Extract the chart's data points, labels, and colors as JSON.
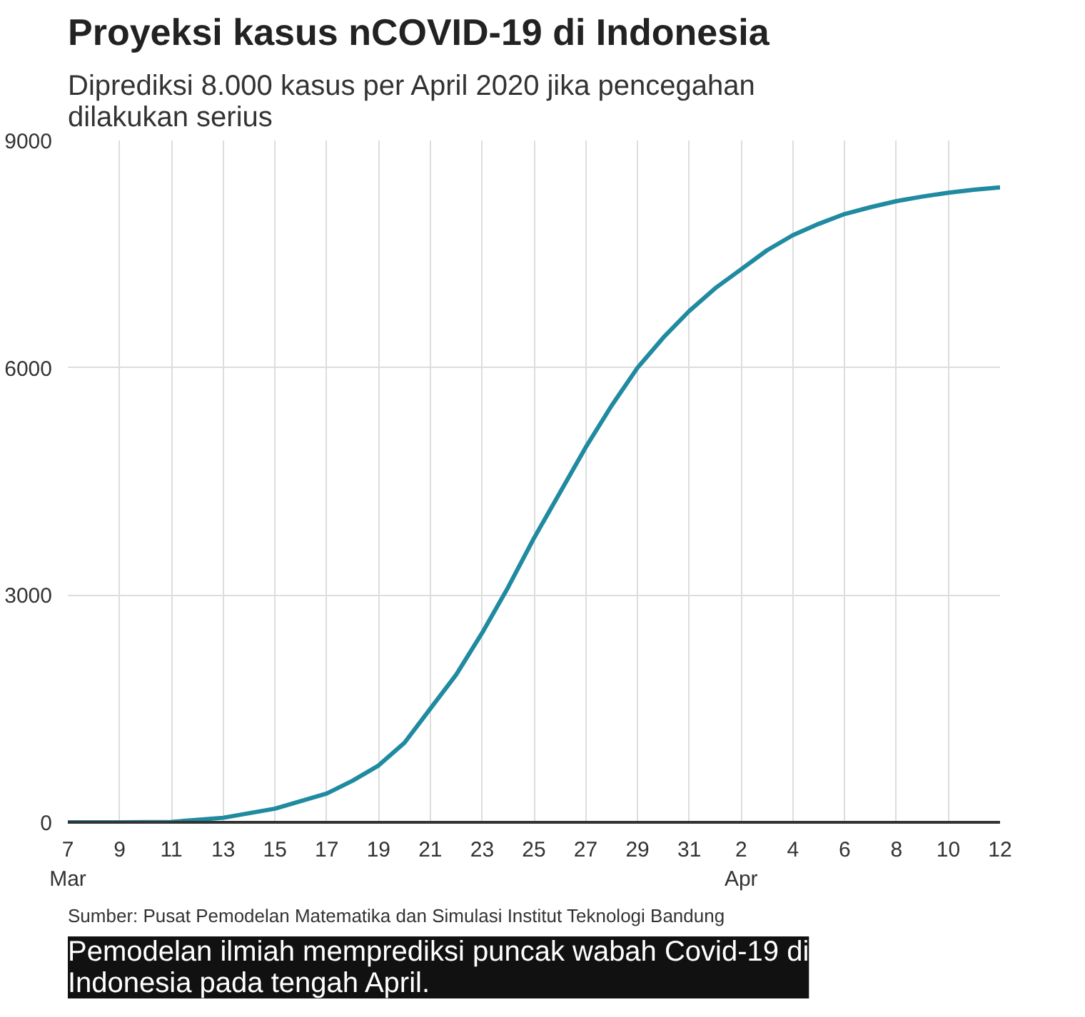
{
  "chart_data": {
    "type": "line",
    "title": "Proyeksi kasus nCOVID-19 di Indonesia",
    "subtitle": "Diprediksi 8.000 kasus per April 2020 jika pencegahan dilakukan serius",
    "x": [
      "2020-03-07",
      "2020-03-09",
      "2020-03-11",
      "2020-03-13",
      "2020-03-15",
      "2020-03-17",
      "2020-03-18",
      "2020-03-19",
      "2020-03-20",
      "2020-03-21",
      "2020-03-22",
      "2020-03-23",
      "2020-03-24",
      "2020-03-25",
      "2020-03-26",
      "2020-03-27",
      "2020-03-28",
      "2020-03-29",
      "2020-03-30",
      "2020-03-31",
      "2020-04-01",
      "2020-04-02",
      "2020-04-03",
      "2020-04-04",
      "2020-04-05",
      "2020-04-06",
      "2020-04-07",
      "2020-04-08",
      "2020-04-09",
      "2020-04-10",
      "2020-04-11",
      "2020-04-12"
    ],
    "series": [
      {
        "color": "#1f8aa0",
        "values": [
          0,
          0,
          5,
          60,
          180,
          380,
          550,
          750,
          1050,
          1500,
          1950,
          2500,
          3100,
          3750,
          4350,
          4950,
          5500,
          6000,
          6400,
          6750,
          7050,
          7300,
          7550,
          7750,
          7900,
          8030,
          8120,
          8200,
          8260,
          8310,
          8350,
          8380
        ]
      }
    ],
    "xlim": [
      "2020-03-07",
      "2020-04-12"
    ],
    "xticks": [
      {
        "value": "2020-03-07",
        "label": "7\nMar"
      },
      {
        "value": "2020-03-09",
        "label": "9"
      },
      {
        "value": "2020-03-11",
        "label": "11"
      },
      {
        "value": "2020-03-13",
        "label": "13"
      },
      {
        "value": "2020-03-15",
        "label": "15"
      },
      {
        "value": "2020-03-17",
        "label": "17"
      },
      {
        "value": "2020-03-19",
        "label": "19"
      },
      {
        "value": "2020-03-21",
        "label": "21"
      },
      {
        "value": "2020-03-23",
        "label": "23"
      },
      {
        "value": "2020-03-25",
        "label": "25"
      },
      {
        "value": "2020-03-27",
        "label": "27"
      },
      {
        "value": "2020-03-29",
        "label": "29"
      },
      {
        "value": "2020-03-31",
        "label": "31"
      },
      {
        "value": "2020-04-02",
        "label": "2\nApr"
      },
      {
        "value": "2020-04-04",
        "label": "4"
      },
      {
        "value": "2020-04-06",
        "label": "6"
      },
      {
        "value": "2020-04-08",
        "label": "8"
      },
      {
        "value": "2020-04-10",
        "label": "10"
      },
      {
        "value": "2020-04-12",
        "label": "12"
      }
    ],
    "ylim": [
      0,
      9000
    ],
    "yticks": [
      0,
      3000,
      6000,
      9000
    ],
    "grid": true,
    "line_style": "solid",
    "marker": "none",
    "annotations": [
      "Sumber: Pusat Pemodelan Matematika dan Simulasi Institut Teknologi Bandung",
      "Pemodelan ilmiah memprediksi puncak wabah Covid-19 di Indonesia pada tengah April."
    ]
  }
}
